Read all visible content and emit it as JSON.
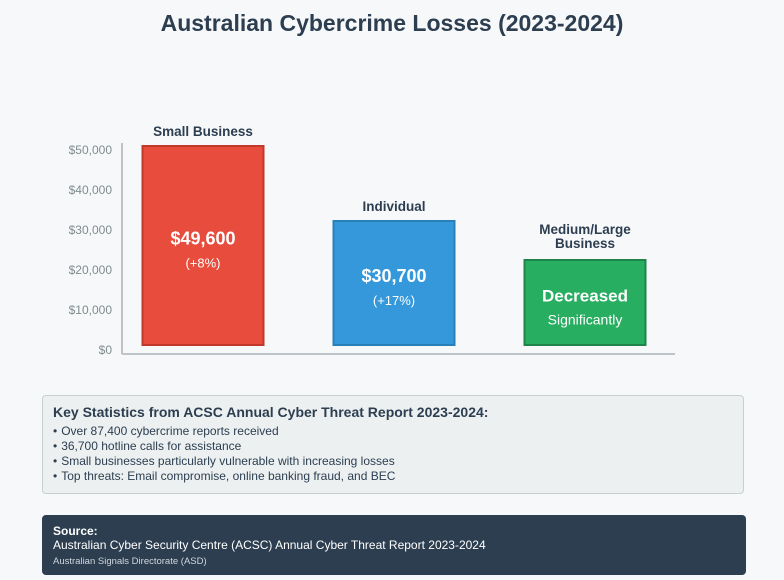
{
  "title": "Australian Cybercrime Losses (2023-2024)",
  "chart_data": {
    "type": "bar",
    "categories": [
      "Small Business",
      "Individual",
      "Medium/Large Business"
    ],
    "values": [
      49600,
      30700,
      21000
    ],
    "value_labels": [
      "$49,600",
      "$30,700",
      "Decreased"
    ],
    "sub_labels": [
      "(+8%)",
      "(+17%)",
      "Significantly"
    ],
    "y_ticks": [
      "$0",
      "$10,000",
      "$20,000",
      "$30,000",
      "$40,000",
      "$50,000"
    ],
    "ylim": [
      0,
      50000
    ],
    "colors": [
      "#e74c3c",
      "#3498db",
      "#27ae60"
    ],
    "border_colors": [
      "#c0392b",
      "#2980b9",
      "#1e8449"
    ],
    "axis_color": "#bdc3c7"
  },
  "stats": {
    "title": "Key Statistics from ACSC Annual Cyber Threat Report 2023-2024:",
    "items": [
      "Over 87,400 cybercrime reports received",
      "36,700 hotline calls for assistance",
      "Small businesses particularly vulnerable with increasing losses",
      "Top threats: Email compromise, online banking fraud, and BEC"
    ]
  },
  "source": {
    "label": "Source:",
    "text": "Australian Cyber Security Centre (ACSC) Annual Cyber Threat Report 2023-2024",
    "org": "Australian Signals Directorate (ASD)"
  }
}
